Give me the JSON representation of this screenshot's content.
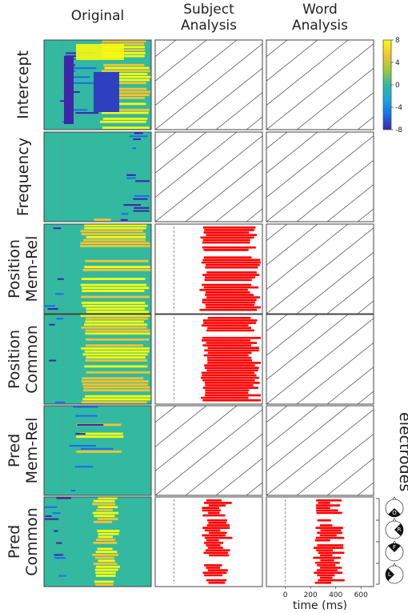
{
  "chart_data": {
    "type": "heatmap",
    "columns": [
      {
        "title": "Original"
      },
      {
        "title": "Subject\nAnalysis"
      },
      {
        "title": "Word\nAnalysis"
      }
    ],
    "rows": [
      {
        "label": "Intercept",
        "subject": "hatched",
        "word": "hatched"
      },
      {
        "label": "Frequency",
        "subject": "hatched",
        "word": "hatched"
      },
      {
        "label": "Position\nMem-Rel",
        "subject": "significant",
        "word": "hatched"
      },
      {
        "label": "Position\nCommon",
        "subject": "significant",
        "word": "hatched"
      },
      {
        "label": "Pred\nMem-Rel",
        "subject": "hatched",
        "word": "hatched"
      },
      {
        "label": "Pred\nCommon",
        "subject": "significant",
        "word": "significant"
      }
    ],
    "colorbar": {
      "ticks": [
        8,
        4,
        0,
        -4,
        -8
      ],
      "range": [
        -8,
        8
      ],
      "colors": [
        "#3e26a8",
        "#1a6cf5",
        "#14a8e0",
        "#32b9a0",
        "#9fc93a",
        "#f4c32f",
        "#f9fb0e"
      ]
    },
    "significance_color": "#ff0000",
    "x_axis": {
      "label": "time (ms)",
      "ticks": [
        0,
        200,
        400,
        600
      ],
      "range": [
        -150,
        700
      ]
    },
    "electrodes": {
      "title": "electrodes",
      "groups": [
        "O",
        "R",
        "F",
        "L"
      ]
    }
  }
}
